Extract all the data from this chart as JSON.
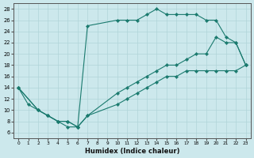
{
  "xlabel": "Humidex (Indice chaleur)",
  "xlim": [
    -0.5,
    23.5
  ],
  "ylim": [
    5,
    29
  ],
  "yticks": [
    6,
    8,
    10,
    12,
    14,
    16,
    18,
    20,
    22,
    24,
    26,
    28
  ],
  "xticks": [
    0,
    1,
    2,
    3,
    4,
    5,
    6,
    7,
    8,
    9,
    10,
    11,
    12,
    13,
    14,
    15,
    16,
    17,
    18,
    19,
    20,
    21,
    22,
    23
  ],
  "background_color": "#cce8ec",
  "line_color": "#1a7a6e",
  "grid_color": "#b0d4d8",
  "line1_x": [
    0,
    1,
    2,
    3,
    4,
    5,
    6,
    7,
    10,
    11,
    12,
    13,
    14,
    15,
    16,
    17,
    18,
    19,
    20,
    21,
    22,
    23
  ],
  "line1_y": [
    14,
    11,
    10,
    9,
    8,
    7,
    7,
    25,
    26,
    26,
    26,
    27,
    28,
    27,
    27,
    27,
    27,
    26,
    26,
    23,
    22,
    18
  ],
  "line2_x": [
    0,
    2,
    3,
    4,
    5,
    6,
    7,
    10,
    11,
    12,
    13,
    14,
    15,
    16,
    17,
    18,
    19,
    20,
    21,
    22,
    23
  ],
  "line2_y": [
    14,
    10,
    9,
    8,
    8,
    7,
    9,
    13,
    14,
    15,
    16,
    17,
    18,
    18,
    19,
    20,
    20,
    23,
    22,
    22,
    18
  ],
  "line3_x": [
    0,
    2,
    3,
    4,
    5,
    6,
    7,
    10,
    11,
    12,
    13,
    14,
    15,
    16,
    17,
    18,
    19,
    20,
    21,
    22,
    23
  ],
  "line3_y": [
    14,
    10,
    9,
    8,
    8,
    7,
    9,
    11,
    12,
    13,
    14,
    15,
    16,
    16,
    17,
    17,
    17,
    17,
    17,
    17,
    18
  ]
}
